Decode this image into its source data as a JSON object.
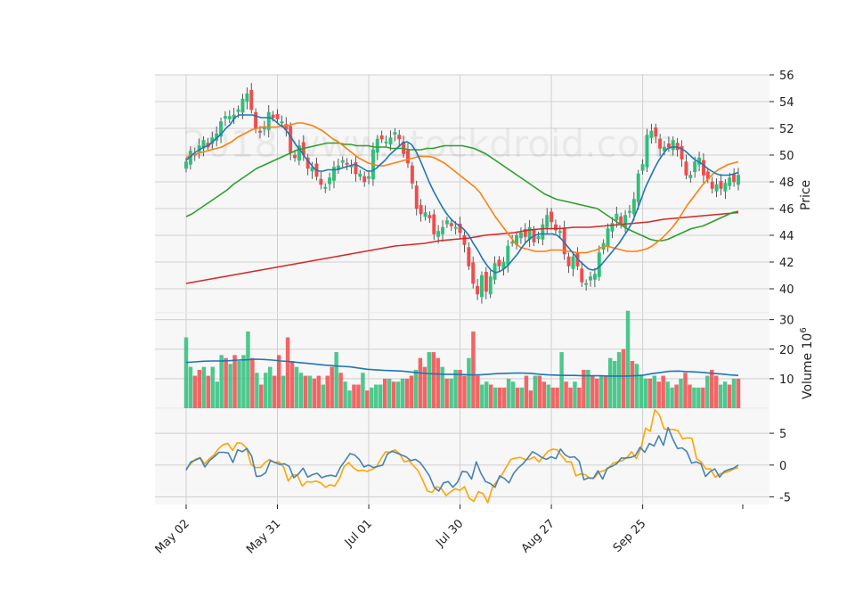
{
  "watermark": "2018 www.stockdroid.com",
  "colors": {
    "up": "#2fbf7a",
    "down": "#f24b4b",
    "sma_short": "#1f77b4",
    "sma_mid": "#ff7f0e",
    "sma_long": "#2ca02c",
    "sma_200": "#d62728",
    "volume_sma": "#1f77b4",
    "osc_fast": "#4682b4",
    "osc_slow": "#ffa500",
    "grid": "#d0d0d0",
    "panel_bg": "#f7f7f7"
  },
  "chart_data": [
    {
      "type": "candlestick",
      "panel": "price",
      "ylabel": "Price",
      "ylim": [
        38.2,
        56
      ],
      "yticks": [
        40,
        42,
        44,
        46,
        48,
        50,
        52,
        54,
        56
      ],
      "x_ticks": [
        {
          "label": "May 02",
          "index": 0
        },
        {
          "label": "May 31",
          "index": 21
        },
        {
          "label": "Jul 01",
          "index": 42
        },
        {
          "label": "Jul 30",
          "index": 63
        },
        {
          "label": "Aug 27",
          "index": 84
        },
        {
          "label": "Sep 25",
          "index": 105
        }
      ],
      "grid": true,
      "close": [
        49.5,
        50.3,
        50.0,
        50.7,
        51.1,
        50.6,
        51.3,
        51.6,
        52.5,
        52.9,
        52.9,
        53.0,
        53.4,
        54.2,
        54.6,
        53.4,
        52.0,
        51.7,
        52.1,
        53.2,
        52.8,
        52.7,
        52.5,
        51.9,
        50.2,
        49.8,
        50.7,
        50.0,
        49.0,
        49.1,
        48.4,
        47.8,
        47.6,
        48.3,
        49.1,
        49.2,
        49.6,
        49.3,
        49.2,
        48.6,
        48.6,
        48.0,
        48.4,
        50.4,
        51.2,
        51.2,
        51.0,
        51.3,
        51.7,
        51.2,
        50.1,
        49.4,
        47.9,
        46.0,
        45.6,
        45.7,
        45.3,
        44.1,
        44.3,
        44.6,
        45.1,
        44.7,
        44.6,
        44.2,
        43.3,
        41.7,
        40.4,
        39.6,
        41.0,
        39.8,
        40.9,
        41.9,
        41.7,
        42.0,
        43.2,
        43.5,
        44.0,
        44.2,
        43.9,
        44.6,
        43.5,
        43.9,
        44.8,
        45.5,
        45.0,
        44.4,
        44.3,
        42.6,
        41.7,
        42.4,
        41.7,
        40.5,
        40.4,
        40.9,
        41.1,
        42.7,
        43.4,
        44.5,
        44.9,
        45.6,
        44.8,
        45.5,
        45.8,
        46.7,
        48.6,
        49.3,
        51.5,
        51.8,
        51.4,
        50.5,
        50.6,
        50.6,
        51.1,
        50.4,
        49.7,
        48.5,
        48.5,
        49.5,
        49.8,
        48.5,
        48.2,
        47.5,
        47.8,
        47.5,
        47.9,
        48.3,
        48.0,
        48.5
      ],
      "sma_short_label": "",
      "sma_short": [
        49.6,
        49.9,
        50.2,
        50.4,
        50.6,
        50.7,
        51.0,
        51.3,
        51.6,
        52.0,
        52.3,
        52.8,
        53.0,
        53.0,
        53.0,
        53.0,
        52.9,
        52.8,
        52.8,
        52.8,
        52.6,
        52.3,
        52.1,
        51.7,
        51.2,
        50.7,
        50.3,
        49.8,
        49.4,
        49.0,
        48.8,
        48.8,
        48.9,
        48.9,
        48.9,
        49.0,
        49.1,
        49.2,
        49.3,
        49.2,
        49.0,
        48.8,
        48.8,
        49.0,
        49.3,
        49.6,
        50.0,
        50.3,
        50.6,
        50.9,
        51.0,
        50.8,
        50.3,
        49.6,
        48.8,
        48.0,
        47.3,
        46.7,
        46.1,
        45.6,
        45.2,
        44.9,
        44.7,
        44.4,
        44.0,
        43.4,
        42.9,
        42.3,
        41.8,
        41.4,
        41.2,
        41.3,
        41.5,
        41.8,
        42.2,
        42.6,
        43.1,
        43.5,
        43.8,
        44.0,
        44.1,
        44.1,
        44.1,
        44.1,
        44.0,
        43.7,
        43.3,
        42.9,
        42.5,
        42.1,
        41.8,
        41.5,
        41.4,
        41.5,
        41.8,
        42.2,
        42.6,
        43.0,
        43.4,
        43.9,
        44.4,
        45.0,
        45.8,
        46.7,
        47.6,
        48.3,
        49.0,
        49.6,
        50.1,
        50.5,
        50.6,
        50.6,
        50.5,
        50.3,
        50.0,
        49.7,
        49.5,
        49.3,
        49.0,
        48.8,
        48.6,
        48.5,
        48.5,
        48.5,
        48.6,
        48.7
      ],
      "sma_mid": [
        49.8,
        50.0,
        50.1,
        50.2,
        50.3,
        50.4,
        50.5,
        50.6,
        50.8,
        51.0,
        51.3,
        51.5,
        51.7,
        51.9,
        52.0,
        52.1,
        52.1,
        52.1,
        52.1,
        52.2,
        52.2,
        52.3,
        52.4,
        52.4,
        52.3,
        52.2,
        52.0,
        51.8,
        51.5,
        51.2,
        51.0,
        50.7,
        50.4,
        50.1,
        49.8,
        49.6,
        49.4,
        49.3,
        49.2,
        49.2,
        49.3,
        49.4,
        49.5,
        49.6,
        49.7,
        49.8,
        49.9,
        49.9,
        49.9,
        49.8,
        49.6,
        49.4,
        49.1,
        48.8,
        48.5,
        48.2,
        47.9,
        47.6,
        47.2,
        46.6,
        46.0,
        45.4,
        44.9,
        44.4,
        43.9,
        43.4,
        43.1,
        43.0,
        42.9,
        42.8,
        42.8,
        42.8,
        42.9,
        42.9,
        42.9,
        42.8,
        42.8,
        42.7,
        42.7,
        42.7,
        42.8,
        42.9,
        43.1,
        43.2,
        43.1,
        43.0,
        42.9,
        42.8,
        42.8,
        42.8,
        42.9,
        43.0,
        43.2,
        43.5,
        43.8,
        44.2,
        44.6,
        45.1,
        45.7,
        46.3,
        46.8,
        47.3,
        47.8,
        48.2,
        48.6,
        48.9,
        49.1,
        49.3,
        49.4,
        49.5
      ],
      "sma_long": [
        45.4,
        45.6,
        45.9,
        46.2,
        46.5,
        46.8,
        47.1,
        47.4,
        47.8,
        48.1,
        48.4,
        48.7,
        49.0,
        49.2,
        49.4,
        49.6,
        49.8,
        50.0,
        50.2,
        50.4,
        50.5,
        50.6,
        50.7,
        50.8,
        50.9,
        50.9,
        50.9,
        50.8,
        50.8,
        50.7,
        50.7,
        50.7,
        50.6,
        50.6,
        50.6,
        50.5,
        50.5,
        50.5,
        50.4,
        50.4,
        50.4,
        50.5,
        50.5,
        50.6,
        50.7,
        50.7,
        50.7,
        50.7,
        50.6,
        50.5,
        50.3,
        50.1,
        49.8,
        49.5,
        49.2,
        48.9,
        48.6,
        48.3,
        48.0,
        47.7,
        47.4,
        47.1,
        46.9,
        46.7,
        46.6,
        46.5,
        46.4,
        46.3,
        46.2,
        46.1,
        46.0,
        45.7,
        45.4,
        45.1,
        44.8,
        44.5,
        44.3,
        44.1,
        43.9,
        43.7,
        43.6,
        43.6,
        43.7,
        43.9,
        44.1,
        44.3,
        44.5,
        44.6,
        44.7,
        44.9,
        45.1,
        45.3,
        45.5,
        45.7,
        45.8
      ],
      "sma_200": [
        40.4,
        40.6,
        40.8,
        41.0,
        41.2,
        41.4,
        41.6,
        41.8,
        42.0,
        42.2,
        42.4,
        42.6,
        42.8,
        43.0,
        43.2,
        43.3,
        43.4,
        43.6,
        43.7,
        43.8,
        44.0,
        44.1,
        44.2,
        44.4,
        44.5,
        44.5,
        44.6,
        44.6,
        44.7,
        44.8,
        44.9,
        45.0,
        45.2,
        45.3,
        45.4,
        45.5,
        45.6,
        45.7
      ]
    },
    {
      "type": "bar",
      "panel": "volume",
      "ylabel": "Volume  10^6",
      "ylim": [
        0,
        32
      ],
      "yticks": [
        10,
        20,
        30
      ],
      "grid": true,
      "values": [
        24,
        14,
        11,
        13,
        14,
        11,
        14,
        9,
        18,
        17,
        15,
        18,
        16,
        18,
        26,
        17,
        12,
        8,
        12,
        14,
        11,
        18,
        11,
        24,
        16,
        14,
        12,
        11,
        11,
        10,
        11,
        8,
        11,
        14,
        19,
        12,
        9,
        6,
        8,
        8,
        12,
        6,
        7,
        8,
        8,
        10,
        10,
        9,
        9,
        10,
        10,
        11,
        13,
        17,
        14,
        19,
        19,
        17,
        14,
        10,
        10,
        13,
        13,
        11,
        17,
        26,
        11,
        8,
        9,
        8,
        7,
        7,
        7,
        10,
        9,
        7,
        7,
        11,
        6,
        11,
        11,
        9,
        8,
        7,
        7,
        19,
        9,
        7,
        9,
        7,
        13,
        13,
        11,
        10,
        11,
        11,
        17,
        16,
        19,
        20,
        33,
        16,
        15,
        11,
        10,
        10,
        11,
        9,
        11,
        9,
        7,
        8,
        10,
        12,
        8,
        7,
        7,
        7,
        11,
        13,
        11,
        8,
        9,
        8,
        10,
        10
      ],
      "vol_sma": [
        15.5,
        15.7,
        15.9,
        16.0,
        16.0,
        16.1,
        16.3,
        16.4,
        16.6,
        16.5,
        16.3,
        16.0,
        15.8,
        15.5,
        15.2,
        14.9,
        14.6,
        14.4,
        14.2,
        14.0,
        13.6,
        13.2,
        13.0,
        12.8,
        12.7,
        12.6,
        12.3,
        12.0,
        11.7,
        11.6,
        11.5,
        11.5,
        11.4,
        11.3,
        11.3,
        11.5,
        11.7,
        11.8,
        11.9,
        11.9,
        11.8,
        11.5,
        11.3,
        11.2,
        11.1,
        11.1,
        11.0,
        11.0,
        11.0,
        10.9,
        10.9,
        10.9,
        11.0,
        11.2,
        11.7,
        12.1,
        12.5,
        12.6,
        12.4,
        12.3,
        12.1,
        11.8,
        11.6,
        11.3,
        11.1
      ]
    },
    {
      "type": "line",
      "panel": "oscillator",
      "ylim": [
        -6.2,
        8.8
      ],
      "yticks": [
        -5,
        0,
        5
      ],
      "grid": true,
      "series": [
        {
          "key": "fast",
          "values": [
            -0.8,
            0.5,
            0.8,
            1.1,
            -0.3,
            0.7,
            1.3,
            2.0,
            2.0,
            1.9,
            0.4,
            2.4,
            2.1,
            2.6,
            1.4,
            -1.8,
            -1.7,
            -1.2,
            0.7,
            0.4,
            0.1,
            0.2,
            -0.2,
            -2.0,
            -1.4,
            -0.5,
            -1.9,
            -1.5,
            -1.3,
            -2.0,
            -1.7,
            -1.6,
            -1.8,
            -0.3,
            0.7,
            1.8,
            1.6,
            0.9,
            -0.3,
            0.0,
            -0.4,
            -0.2,
            0.0,
            1.7,
            2.2,
            1.9,
            1.6,
            1.3,
            0.7,
            0.9,
            0.4,
            -0.6,
            -1.7,
            -3.5,
            -4.1,
            -2.8,
            -2.6,
            -3.5,
            -2.7,
            -1.0,
            -1.1,
            -2.2,
            0.5,
            -1.3,
            -2.6,
            -2.9,
            -3.5,
            -1.7,
            -2.1,
            -2.8,
            -1.3,
            -0.4,
            0.2,
            1.1,
            2.1,
            1.7,
            1.2,
            0.9,
            1.3,
            1.0,
            2.5,
            1.6,
            1.2,
            1.3,
            0.6,
            -2.3,
            -2.0,
            -2.1,
            -0.9,
            -2.2,
            -0.5,
            -0.2,
            0.2,
            1.1,
            1.1,
            1.2,
            1.5,
            2.8,
            2.0,
            3.4,
            3.0,
            4.6,
            3.1,
            5.9,
            4.1,
            2.6,
            2.7,
            2.1,
            0.3,
            0.5,
            0.2,
            -1.8,
            -1.0,
            -0.6,
            -1.9,
            -1.0,
            -0.7,
            -0.5,
            0.0
          ]
        },
        {
          "key": "slow",
          "values": [
            -0.6,
            0.2,
            0.9,
            1.2,
            0.2,
            1.0,
            1.6,
            2.6,
            3.2,
            3.4,
            2.3,
            3.5,
            3.4,
            2.7,
            0.1,
            -0.4,
            -0.4,
            0.4,
            0.9,
            0.4,
            0.5,
            -0.3,
            -2.5,
            -1.5,
            -1.6,
            -3.3,
            -2.6,
            -2.7,
            -2.5,
            -2.8,
            -3.5,
            -3.1,
            -3.3,
            -2.2,
            -0.3,
            0.4,
            -0.4,
            -0.9,
            -0.8,
            -1.0,
            -0.7,
            -0.3,
            1.0,
            2.1,
            2.0,
            2.4,
            1.8,
            0.5,
            0.7,
            -0.1,
            -0.9,
            -2.4,
            -4.1,
            -4.3,
            -3.4,
            -3.7,
            -4.8,
            -4.2,
            -3.7,
            -4.0,
            -3.4,
            -5.2,
            -5.7,
            -4.2,
            -4.5,
            -5.9,
            -3.5,
            -2.5,
            -1.6,
            -0.3,
            0.9,
            1.1,
            1.2,
            0.9,
            0.9,
            1.3,
            0.5,
            1.3,
            2.2,
            2.5,
            2.4,
            1.4,
            0.5,
            0.5,
            -1.7,
            -1.4,
            -1.5,
            -2.1,
            -2.0,
            -1.1,
            -0.9,
            -0.5,
            0.3,
            0.5,
            0.7,
            1.2,
            2.1,
            1.0,
            2.6,
            5.8,
            5.3,
            8.7,
            7.9,
            5.7,
            5.6,
            5.6,
            5.4,
            4.1,
            4.3,
            4.2,
            1.0,
            0.5,
            -0.6,
            -0.6,
            -1.9,
            -1.4,
            -1.2,
            -1.0,
            -0.6,
            -0.4
          ]
        }
      ]
    }
  ]
}
